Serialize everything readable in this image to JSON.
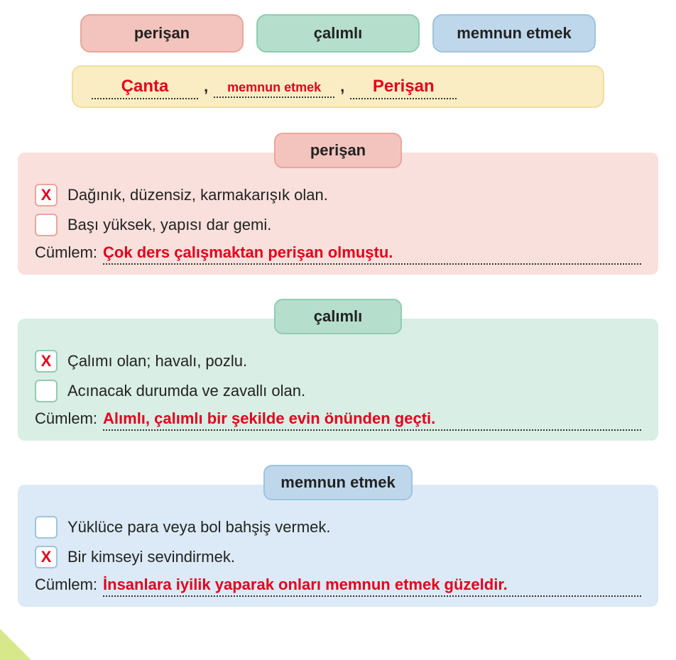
{
  "colors": {
    "answer": "#e3001b",
    "text": "#222222",
    "bg": "#ffffff",
    "pill_red_bg": "#f3c4bd",
    "pill_red_border": "#e9a69c",
    "block_red_bg": "#f9e0dc",
    "pill_green_bg": "#b6decd",
    "pill_green_border": "#8fccb3",
    "block_green_bg": "#d9eee5",
    "pill_blue_bg": "#bfd7eb",
    "pill_blue_border": "#9ec4e0",
    "block_blue_bg": "#dbeaf6",
    "yellow_bg": "#faedc4",
    "yellow_border": "#f0de9e",
    "corner": "#d7e88a"
  },
  "fonts": {
    "base_size": 22,
    "answer_weight": 800,
    "title_weight": 600
  },
  "pills": [
    {
      "label": "perişan",
      "color": "red"
    },
    {
      "label": "çalımlı",
      "color": "green"
    },
    {
      "label": "memnun etmek",
      "color": "blue"
    }
  ],
  "yellow_answers": {
    "slot1": "Çanta",
    "slot2": "memnun etmek",
    "slot3": "Perişan",
    "sep": ","
  },
  "blocks": [
    {
      "title": "perişan",
      "color": "red",
      "options": [
        {
          "checked": true,
          "text": "Dağınık, düzensiz, karmakarışık olan."
        },
        {
          "checked": false,
          "text": "Başı yüksek, yapısı dar gemi."
        }
      ],
      "sentence_label": "Cümlem:",
      "sentence": "Çok ders çalışmaktan perişan olmuştu."
    },
    {
      "title": "çalımlı",
      "color": "green",
      "options": [
        {
          "checked": true,
          "text": "Çalımı olan; havalı, pozlu."
        },
        {
          "checked": false,
          "text": "Acınacak durumda ve zavallı olan."
        }
      ],
      "sentence_label": "Cümlem:",
      "sentence": "Alımlı, çalımlı bir şekilde evin önünden geçti."
    },
    {
      "title": "memnun etmek",
      "color": "blue",
      "options": [
        {
          "checked": false,
          "text": "Yüklüce para veya bol bahşiş vermek."
        },
        {
          "checked": true,
          "text": "Bir kimseyi sevindirmek."
        }
      ],
      "sentence_label": "Cümlem:",
      "sentence": "İnsanlara iyilik yaparak onları memnun etmek güzeldir."
    }
  ],
  "check_mark": "X"
}
